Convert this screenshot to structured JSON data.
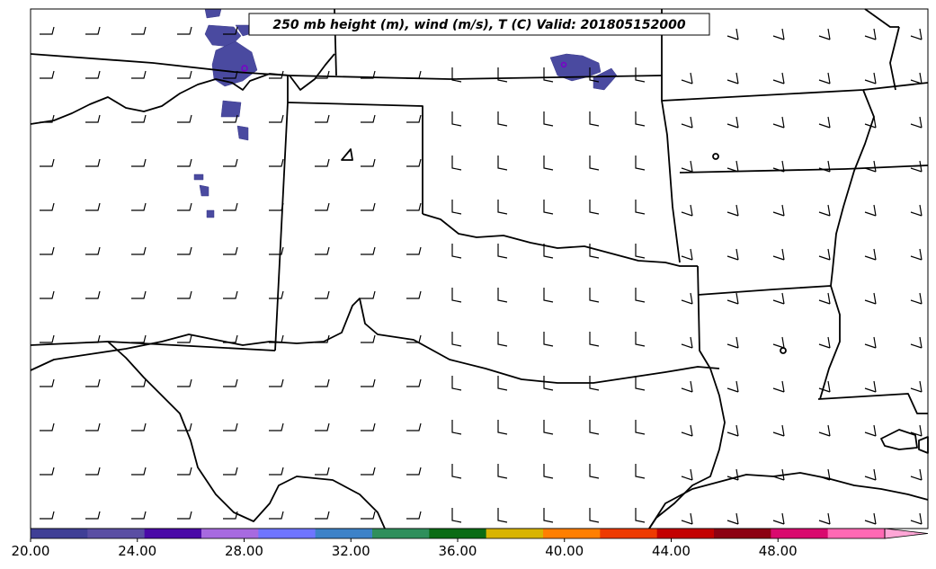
{
  "title": "250 mb height (m), wind (m/s), T (C) Valid: 201805152000",
  "colorbar": {
    "colors": [
      "#3f3f96",
      "#5a4ea3",
      "#4a0aa7",
      "#a76ae0",
      "#6f75ff",
      "#3d82c8",
      "#2f8f5c",
      "#0a6b14",
      "#d8b400",
      "#ff7f00",
      "#ee3a00",
      "#c30000",
      "#8c0012",
      "#d90a6e",
      "#ff69b4",
      "#ffa6d6"
    ],
    "ticks": [
      "20.00",
      "24.00",
      "28.00",
      "32.00",
      "36.00",
      "40.00",
      "44.00",
      "48.00"
    ],
    "range": [
      20,
      52
    ],
    "extend": "max"
  },
  "layers": {
    "boundaries": "states-coastlines",
    "wind_barbs": "wind-barbs",
    "temperature_fill": "#4a4aa0"
  }
}
